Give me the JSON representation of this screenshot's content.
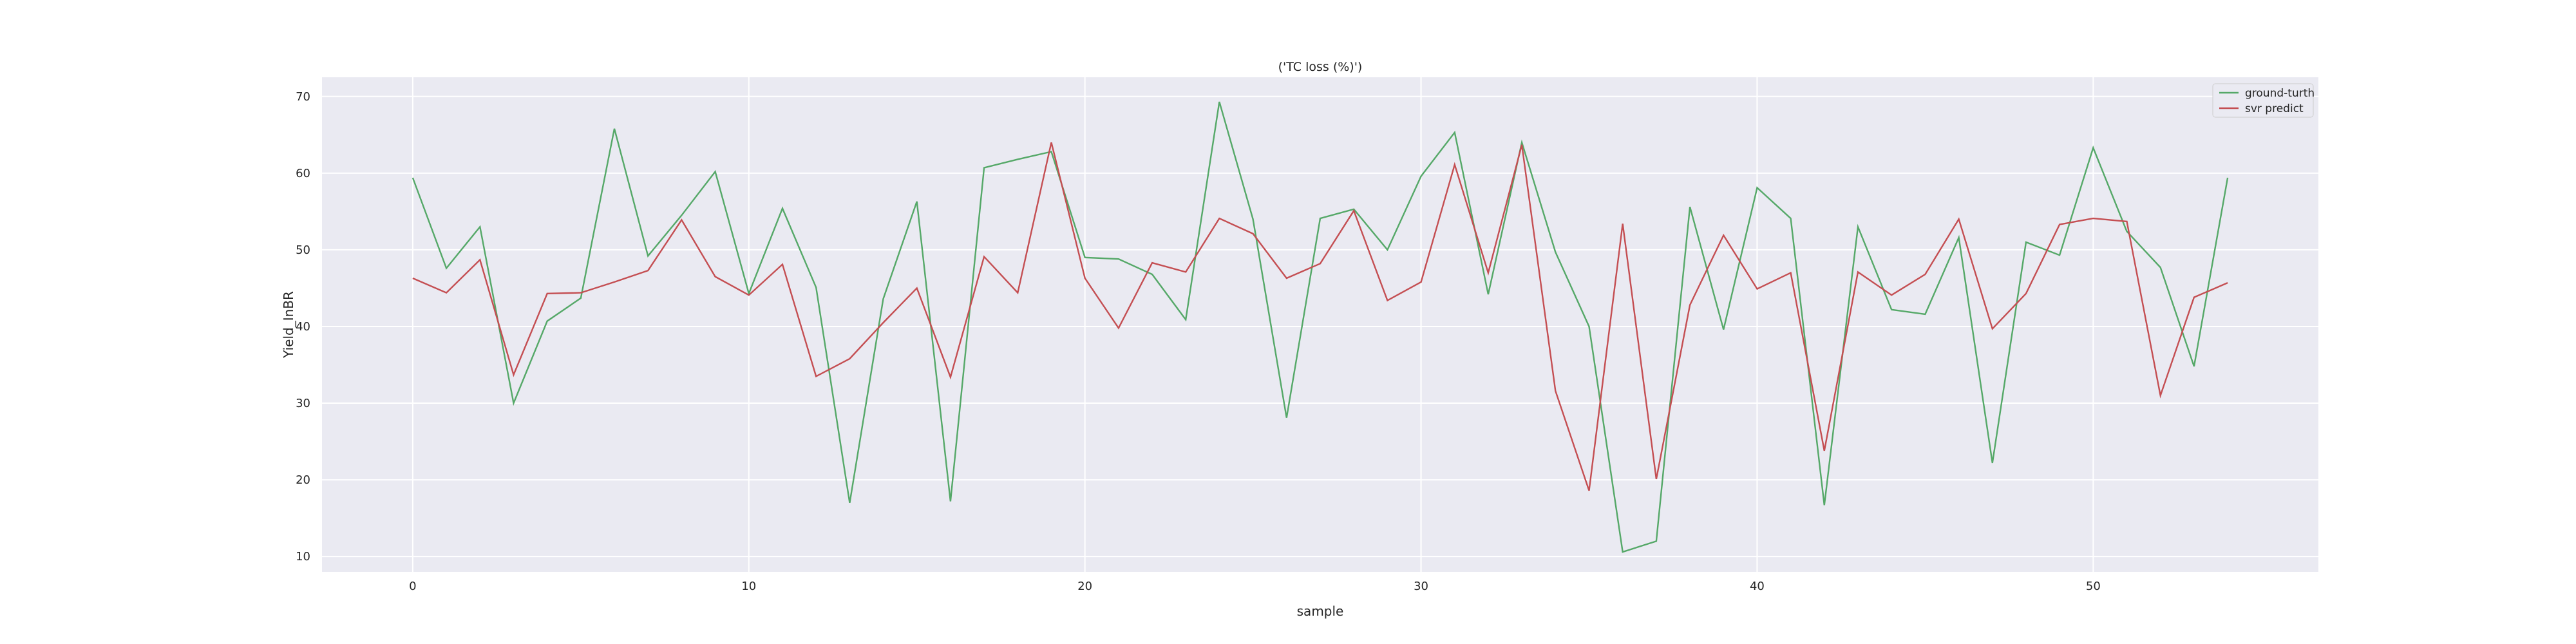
{
  "chart_data": {
    "type": "line",
    "title": "('TC loss (%)')",
    "xlabel": "sample",
    "ylabel": "Yield_InBR",
    "xlim": [
      -2.7,
      56.7
    ],
    "ylim": [
      8,
      72.5
    ],
    "xticks": [
      0,
      10,
      20,
      30,
      40,
      50
    ],
    "yticks": [
      10,
      20,
      30,
      40,
      50,
      60,
      70
    ],
    "grid": true,
    "legend_position": "top-right",
    "background": "#eaeaf2",
    "x": [
      0,
      1,
      2,
      3,
      4,
      5,
      6,
      7,
      8,
      9,
      10,
      11,
      12,
      13,
      14,
      15,
      16,
      17,
      18,
      19,
      20,
      21,
      22,
      23,
      24,
      25,
      26,
      27,
      28,
      29,
      30,
      31,
      32,
      33,
      34,
      35,
      36,
      37,
      38,
      39,
      40,
      41,
      42,
      43,
      44,
      45,
      46,
      47,
      48,
      49,
      50,
      51,
      52,
      53,
      54
    ],
    "series": [
      {
        "name": "ground-turth",
        "color": "#55a868",
        "values": [
          59.4,
          47.6,
          53.0,
          30.0,
          40.7,
          43.7,
          65.8,
          49.2,
          54.5,
          60.2,
          44.3,
          55.4,
          45.1,
          17.0,
          43.6,
          56.3,
          17.2,
          60.7,
          61.8,
          62.8,
          49.0,
          48.8,
          46.8,
          40.9,
          69.3,
          54.0,
          28.1,
          54.1,
          55.3,
          50.0,
          59.6,
          65.3,
          44.2,
          64.0,
          49.7,
          40.0,
          10.6,
          12.0,
          55.6,
          39.6,
          58.1,
          54.1,
          16.7,
          53.0,
          42.2,
          41.6,
          51.6,
          22.2,
          51.0,
          49.3,
          63.3,
          52.4,
          47.7,
          34.8,
          59.4
        ]
      },
      {
        "name": "svr predict",
        "color": "#c44e52",
        "values": [
          46.3,
          44.4,
          48.7,
          33.7,
          44.3,
          44.4,
          45.8,
          47.3,
          53.9,
          46.5,
          44.1,
          48.1,
          33.5,
          35.8,
          40.5,
          45.0,
          33.4,
          49.1,
          44.4,
          64.0,
          46.3,
          39.8,
          48.3,
          47.1,
          54.1,
          52.1,
          46.3,
          48.2,
          55.1,
          43.4,
          45.8,
          61.1,
          47.0,
          63.7,
          31.6,
          18.6,
          53.4,
          20.1,
          42.8,
          51.9,
          44.9,
          47.0,
          23.8,
          47.1,
          44.1,
          46.8,
          54.0,
          39.7,
          44.3,
          53.3,
          54.1,
          53.7,
          31.0,
          43.8,
          45.7
        ]
      }
    ]
  }
}
